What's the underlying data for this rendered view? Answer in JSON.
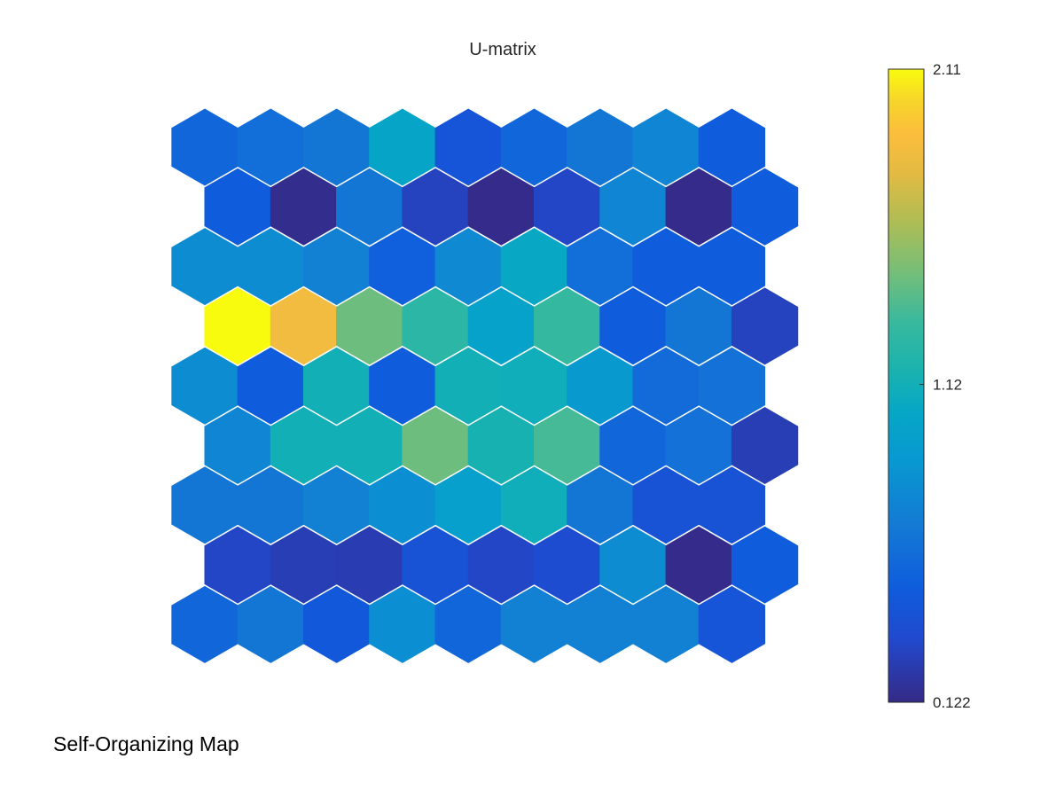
{
  "figure": {
    "caption": "Self-Organizing Map"
  },
  "chart_data": {
    "type": "heatmap",
    "title": "U-matrix",
    "grid_shape": "hexagonal",
    "rows": 9,
    "cols": 9,
    "colormap": "parula",
    "colorbar": {
      "min": 0.122,
      "max": 2.11,
      "ticks": [
        2.11,
        1.12,
        0.122
      ],
      "tick_labels": [
        "2.11",
        "1.12",
        "0.122"
      ],
      "placement": "right"
    },
    "values": [
      [
        0.55,
        0.6,
        0.65,
        1.02,
        0.42,
        0.55,
        0.65,
        0.75,
        0.48
      ],
      [
        0.48,
        0.14,
        0.65,
        0.28,
        0.13,
        0.3,
        0.75,
        0.13,
        0.48
      ],
      [
        0.8,
        0.8,
        0.72,
        0.5,
        0.78,
        1.05,
        0.6,
        0.48,
        0.48
      ],
      [
        2.11,
        1.85,
        1.45,
        1.25,
        0.98,
        1.3,
        0.48,
        0.65,
        0.28
      ],
      [
        0.8,
        0.48,
        1.12,
        0.48,
        1.12,
        1.1,
        0.9,
        0.58,
        0.62
      ],
      [
        0.75,
        1.12,
        1.12,
        1.45,
        1.15,
        1.35,
        0.55,
        0.62,
        0.25
      ],
      [
        0.65,
        0.65,
        0.72,
        0.82,
        0.95,
        1.1,
        0.65,
        0.4,
        0.4
      ],
      [
        0.3,
        0.25,
        0.24,
        0.4,
        0.3,
        0.35,
        0.8,
        0.13,
        0.48
      ],
      [
        0.55,
        0.65,
        0.45,
        0.82,
        0.55,
        0.72,
        0.72,
        0.72,
        0.42
      ]
    ]
  }
}
